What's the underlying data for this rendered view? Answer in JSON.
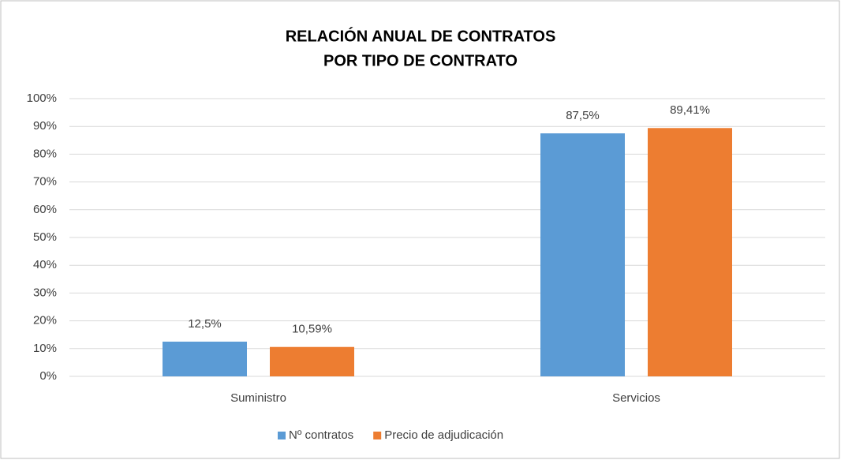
{
  "chart_data": {
    "type": "bar",
    "title": [
      "RELACIÓN ANUAL DE CONTRATOS",
      "POR TIPO DE CONTRATO"
    ],
    "categories": [
      "Suministro",
      "Servicios"
    ],
    "series": [
      {
        "name": "Nº contratos",
        "color": "#5b9bd5",
        "values": [
          12.5,
          87.5
        ],
        "value_labels": [
          "12,5%",
          "87,5%"
        ]
      },
      {
        "name": "Precio de adjudicación",
        "color": "#ed7d31",
        "values": [
          10.59,
          89.41
        ],
        "value_labels": [
          "10,59%",
          "89,41%"
        ]
      }
    ],
    "ylim": [
      0,
      100
    ],
    "yticks": [
      {
        "value": 0,
        "label": "0%"
      },
      {
        "value": 10,
        "label": "10%"
      },
      {
        "value": 20,
        "label": "20%"
      },
      {
        "value": 30,
        "label": "30%"
      },
      {
        "value": 40,
        "label": "40%"
      },
      {
        "value": 50,
        "label": "50%"
      },
      {
        "value": 60,
        "label": "60%"
      },
      {
        "value": 70,
        "label": "70%"
      },
      {
        "value": 80,
        "label": "80%"
      },
      {
        "value": 90,
        "label": "90%"
      },
      {
        "value": 100,
        "label": "100%"
      }
    ],
    "grid": true,
    "legend": "bottom"
  }
}
